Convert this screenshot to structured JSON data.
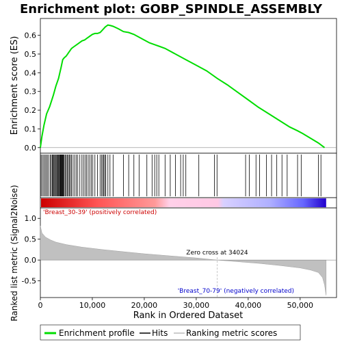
{
  "chart_data": {
    "type": "line",
    "title": "Enrichment plot: GOBP_SPINDLE_ASSEMBLY",
    "xlabel": "Rank in Ordered Dataset",
    "ylabel_top": "Enrichment score (ES)",
    "ylabel_bottom": "Ranked list metric (Signal2Noise)",
    "xlim": [
      0,
      57000
    ],
    "x_ticks": [
      0,
      10000,
      20000,
      30000,
      40000,
      50000
    ],
    "x_tick_labels": [
      "0",
      "10,000",
      "20,000",
      "30,000",
      "40,000",
      "50,000"
    ],
    "es_ylim": [
      -0.03,
      0.69
    ],
    "es_ticks": [
      0.0,
      0.1,
      0.2,
      0.3,
      0.4,
      0.5,
      0.6
    ],
    "es_tick_labels": [
      "0.0",
      "0.1",
      "0.2",
      "0.3",
      "0.4",
      "0.5",
      "0.6"
    ],
    "metric_ylim": [
      -0.9,
      1.25
    ],
    "metric_ticks": [
      -0.5,
      0.0,
      0.5,
      1.0
    ],
    "metric_tick_labels": [
      "-0.5",
      "0.0",
      "0.5",
      "1.0"
    ],
    "enrichment_profile": {
      "x": [
        0,
        300,
        700,
        1200,
        1800,
        2500,
        3000,
        3500,
        4000,
        4300,
        4600,
        5000,
        5500,
        6000,
        6500,
        7000,
        7500,
        8000,
        8500,
        9000,
        9500,
        10000,
        10500,
        11000,
        11500,
        12000,
        12500,
        13000,
        13500,
        14000,
        15000,
        16000,
        17000,
        18000,
        19000,
        20000,
        21000,
        22000,
        23000,
        24000,
        26000,
        28000,
        30000,
        32000,
        34024,
        36000,
        38000,
        40000,
        42000,
        44000,
        46000,
        48000,
        49500,
        50500,
        52000,
        53500,
        54700
      ],
      "y": [
        0.0,
        0.06,
        0.12,
        0.18,
        0.22,
        0.28,
        0.33,
        0.37,
        0.43,
        0.47,
        0.48,
        0.49,
        0.51,
        0.53,
        0.54,
        0.55,
        0.56,
        0.57,
        0.575,
        0.585,
        0.595,
        0.605,
        0.61,
        0.61,
        0.615,
        0.63,
        0.645,
        0.655,
        0.652,
        0.648,
        0.635,
        0.62,
        0.615,
        0.605,
        0.59,
        0.575,
        0.56,
        0.55,
        0.54,
        0.53,
        0.5,
        0.47,
        0.44,
        0.41,
        0.37,
        0.335,
        0.295,
        0.255,
        0.215,
        0.18,
        0.145,
        0.11,
        0.09,
        0.075,
        0.05,
        0.025,
        0.0
      ]
    },
    "hits": [
      150,
      400,
      650,
      900,
      1100,
      1350,
      1600,
      1900,
      2100,
      2300,
      2450,
      2600,
      2750,
      2900,
      3050,
      3200,
      3350,
      3500,
      3650,
      3750,
      3850,
      3950,
      4050,
      4150,
      4250,
      4350,
      4450,
      4600,
      4800,
      5000,
      5200,
      5400,
      5600,
      5800,
      6000,
      6300,
      6600,
      6900,
      7200,
      7600,
      8000,
      8300,
      8600,
      8900,
      9200,
      9500,
      9800,
      10100,
      10500,
      11000,
      11500,
      11800,
      12000,
      12200,
      12400,
      12600,
      13000,
      13400,
      14000,
      16000,
      17000,
      18000,
      19000,
      20500,
      21500,
      22000,
      22400,
      22800,
      24000,
      25000,
      26000,
      27000,
      27500,
      28000,
      30500,
      33500,
      34000,
      39500,
      40200,
      41500,
      42200,
      43500,
      44500,
      45500,
      46500,
      47500,
      49500,
      50200,
      53500,
      54000
    ],
    "metric": {
      "x": [
        0,
        300,
        1000,
        2000,
        3000,
        5000,
        8000,
        12000,
        16000,
        20000,
        25000,
        30000,
        34024,
        38000,
        42000,
        46000,
        50000,
        52000,
        53500,
        54300,
        54700,
        55000
      ],
      "y": [
        0.82,
        0.65,
        0.55,
        0.48,
        0.43,
        0.37,
        0.31,
        0.25,
        0.2,
        0.15,
        0.1,
        0.05,
        0.0,
        -0.04,
        -0.08,
        -0.13,
        -0.19,
        -0.24,
        -0.3,
        -0.42,
        -0.6,
        -0.85
      ]
    },
    "zero_cross_x": 34024,
    "zero_cross_label": "Zero cross at 34024",
    "pos_label": "'Breast_30-39' (positively correlated)",
    "neg_label": "'Breast_70-79' (negatively correlated)",
    "legend": [
      {
        "name": "Enrichment profile",
        "color": "#00dd00"
      },
      {
        "name": "Hits",
        "color": "#000000"
      },
      {
        "name": "Ranking metric scores",
        "color": "#bbbbbb"
      }
    ],
    "colors": {
      "profile": "#00dd00",
      "metric_fill": "#c0c0c0",
      "pos_label": "#cc0000",
      "neg_label": "#0000cc"
    }
  }
}
